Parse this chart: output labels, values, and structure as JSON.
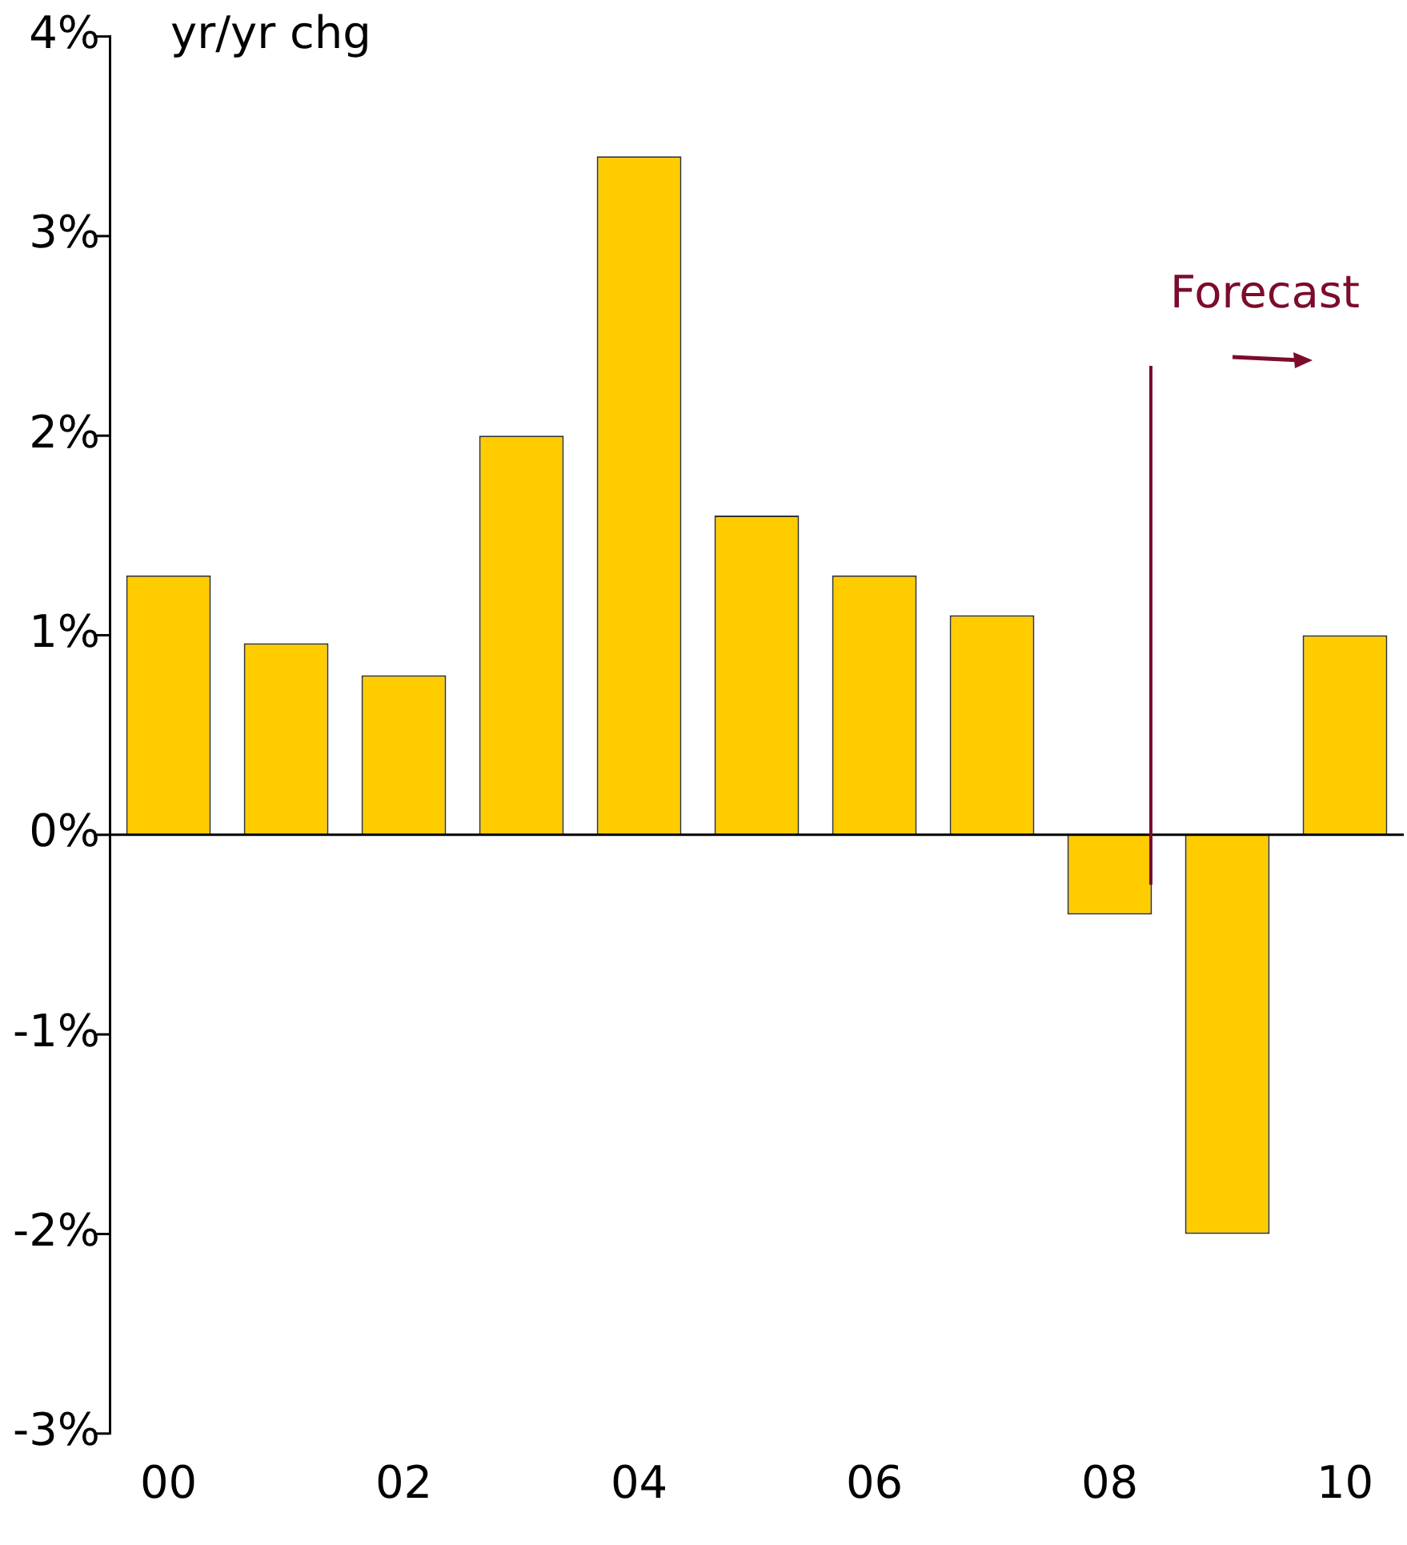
{
  "chart_data": {
    "type": "bar",
    "ylabel": "yr/yr chg",
    "x": [
      0,
      1,
      2,
      3,
      4,
      5,
      6,
      7,
      8,
      9,
      10
    ],
    "values": [
      1.3,
      0.96,
      0.8,
      2.0,
      3.4,
      1.6,
      1.3,
      1.1,
      -0.4,
      -2.0,
      1.0
    ],
    "color": "#ffcc00",
    "xlim": [
      -0.5,
      10.5
    ],
    "xticks": [
      {
        "value": 0,
        "label": "00"
      },
      {
        "value": 2,
        "label": "02"
      },
      {
        "value": 4,
        "label": "04"
      },
      {
        "value": 6,
        "label": "06"
      },
      {
        "value": 8,
        "label": "08"
      },
      {
        "value": 10,
        "label": "10"
      }
    ],
    "ylim": [
      -3,
      4
    ],
    "yticks": [
      {
        "value": -3,
        "label": "-3%"
      },
      {
        "value": -2,
        "label": "-2%"
      },
      {
        "value": -1,
        "label": "-1%"
      },
      {
        "value": 0,
        "label": "0%"
      },
      {
        "value": 1,
        "label": "1%"
      },
      {
        "value": 2,
        "label": "2%"
      },
      {
        "value": 3,
        "label": "3%"
      },
      {
        "value": 4,
        "label": "4%"
      }
    ],
    "ref_lines": [
      {
        "axis": "y",
        "value": 0,
        "color": "#000000"
      },
      {
        "axis": "x",
        "value": 8.35,
        "color": "#7b0c2c",
        "label": "Forecast"
      }
    ],
    "grid": false,
    "legend": false
  }
}
